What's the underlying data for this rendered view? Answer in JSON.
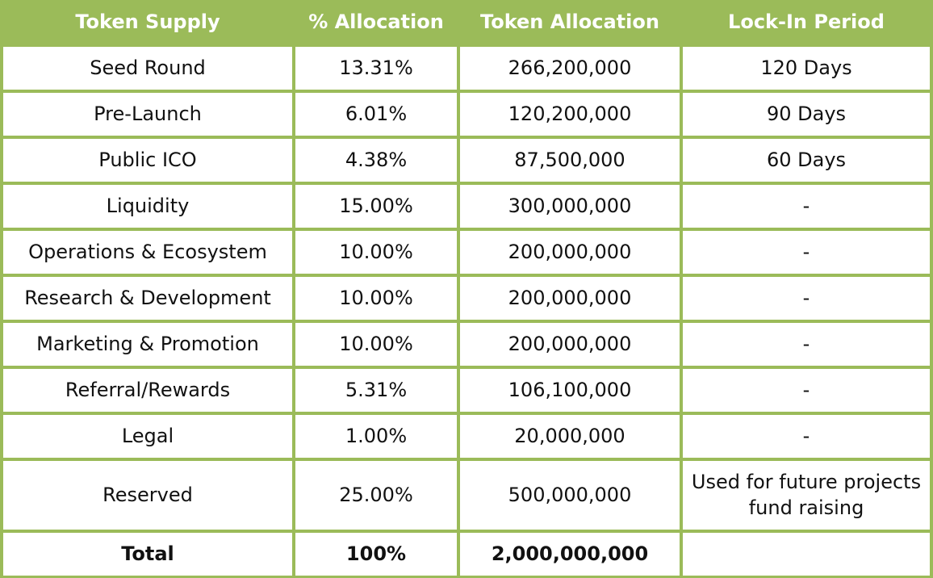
{
  "headers": [
    "Token Supply",
    "% Allocation",
    "Token Allocation",
    "Lock-In Period"
  ],
  "rows": [
    [
      "Seed Round",
      "13.31%",
      "266,200,000",
      "120 Days"
    ],
    [
      "Pre-Launch",
      "6.01%",
      "120,200,000",
      "90 Days"
    ],
    [
      "Public ICO",
      "4.38%",
      "87,500,000",
      "60 Days"
    ],
    [
      "Liquidity",
      "15.00%",
      "300,000,000",
      "-"
    ],
    [
      "Operations & Ecosystem",
      "10.00%",
      "200,000,000",
      "-"
    ],
    [
      "Research & Development",
      "10.00%",
      "200,000,000",
      "-"
    ],
    [
      "Marketing & Promotion",
      "10.00%",
      "200,000,000",
      "-"
    ],
    [
      "Referral/Rewards",
      "5.31%",
      "106,100,000",
      "-"
    ],
    [
      "Legal",
      "1.00%",
      "20,000,000",
      "-"
    ],
    [
      "Reserved",
      "25.00%",
      "500,000,000",
      "Used for future projects fund raising"
    ]
  ],
  "total": [
    "Total",
    "100%",
    "2,000,000,000",
    ""
  ],
  "colors": {
    "border": "#9bbb59",
    "header_text": "#ffffff"
  }
}
